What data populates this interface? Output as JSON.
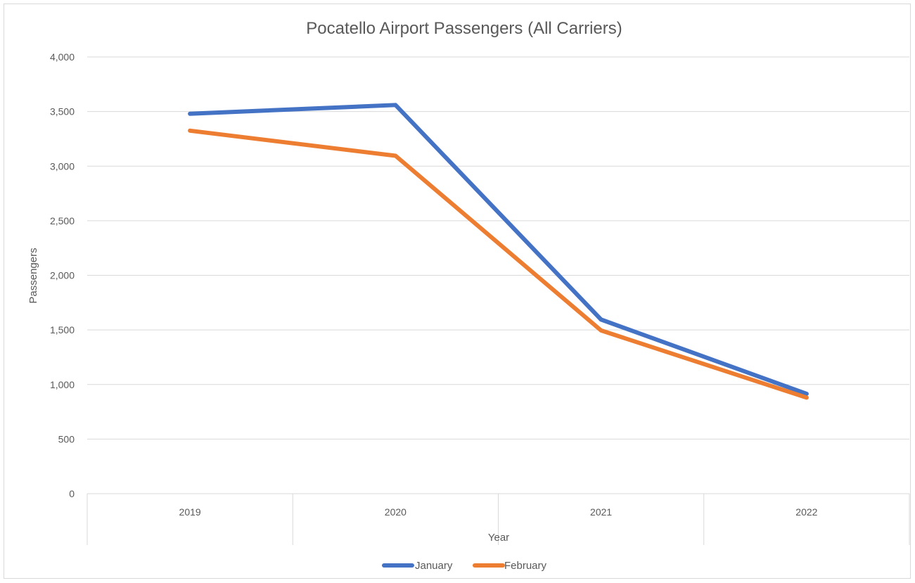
{
  "chart_data": {
    "type": "line",
    "title": "Pocatello Airport Passengers (All Carriers)",
    "xlabel": "Year",
    "ylabel": "Passengers",
    "categories": [
      "2019",
      "2020",
      "2021",
      "2022"
    ],
    "ylim": [
      0,
      4000
    ],
    "yticks": [
      0,
      500,
      1000,
      1500,
      2000,
      2500,
      3000,
      3500,
      4000
    ],
    "ytick_labels": [
      "0",
      "500",
      "1,000",
      "1,500",
      "2,000",
      "2,500",
      "3,000",
      "3,500",
      "4,000"
    ],
    "grid": true,
    "legend_position": "bottom",
    "series": [
      {
        "name": "January",
        "color": "#4472C4",
        "values": [
          3480,
          3560,
          1595,
          915
        ]
      },
      {
        "name": "February",
        "color": "#ED7D31",
        "values": [
          3325,
          3095,
          1495,
          880
        ]
      }
    ]
  }
}
